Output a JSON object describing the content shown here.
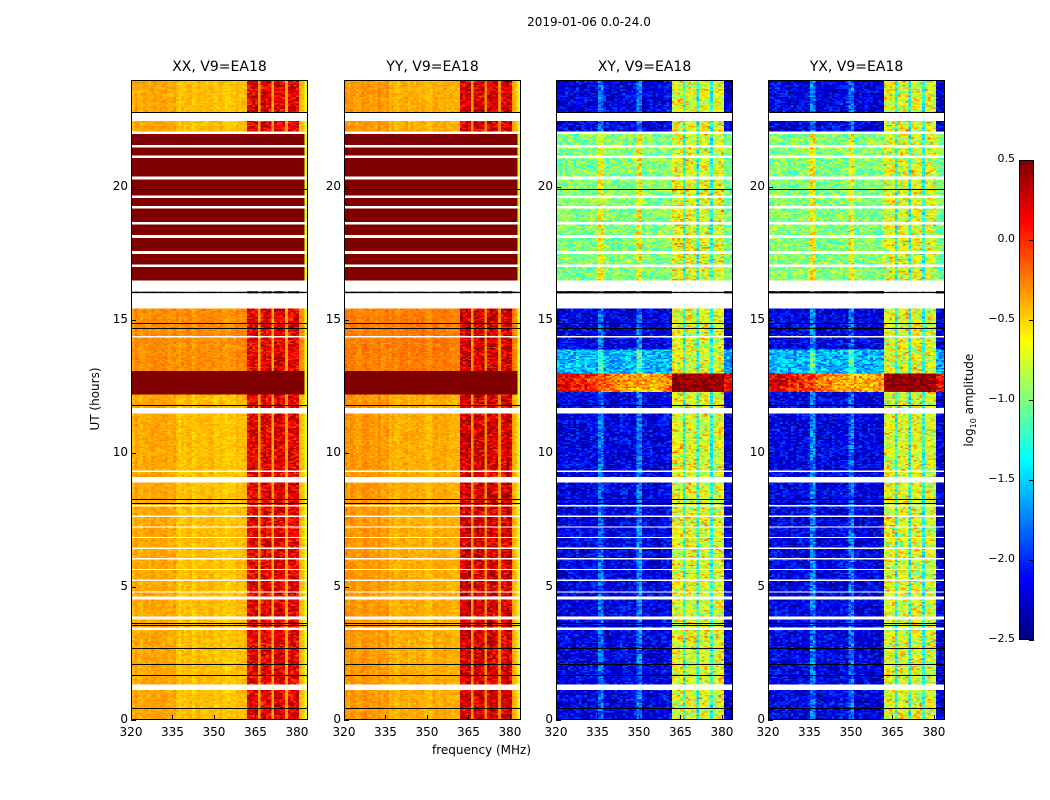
{
  "chart_data": {
    "type": "heatmap",
    "title": "2019-01-06 0.0-24.0",
    "xlabel": "frequency (MHz)",
    "ylabel": "UT (hours)",
    "xlim": [
      320,
      384
    ],
    "ylim": [
      0,
      24
    ],
    "xticks": [
      "320",
      "335",
      "350",
      "365",
      "380"
    ],
    "yticks": [
      "0",
      "5",
      "10",
      "15",
      "20"
    ],
    "colorbar": {
      "label_parts": [
        "log",
        "10",
        " amplitude"
      ],
      "range": [
        -2.5,
        0.5
      ],
      "ticks": [
        "0.5",
        "0.0",
        "−0.5",
        "−1.0",
        "−1.5",
        "−2.0",
        "−2.5"
      ],
      "colormap": "jet"
    },
    "rfi_band_mhz": [
      362,
      381
    ],
    "rfi_subband_gaps_mhz": [
      366.5,
      371.5,
      376.5
    ],
    "flagged_rows_hours": [
      [
        1.1,
        1.3
      ],
      [
        3.35,
        3.45
      ],
      [
        3.75,
        3.85
      ],
      [
        4.5,
        4.6
      ],
      [
        4.75,
        4.8
      ],
      [
        5.2,
        5.25
      ],
      [
        5.6,
        5.65
      ],
      [
        6.0,
        6.05
      ],
      [
        6.4,
        6.45
      ],
      [
        6.8,
        6.85
      ],
      [
        7.2,
        7.25
      ],
      [
        7.6,
        7.65
      ],
      [
        8.0,
        8.05
      ],
      [
        8.9,
        9.1
      ],
      [
        9.3,
        9.35
      ],
      [
        11.5,
        11.7
      ],
      [
        14.35,
        14.4
      ],
      [
        15.45,
        16.0
      ],
      [
        16.1,
        16.5
      ],
      [
        17.0,
        17.1
      ],
      [
        17.5,
        17.6
      ],
      [
        18.1,
        18.2
      ],
      [
        18.6,
        18.7
      ],
      [
        19.2,
        19.3
      ],
      [
        19.6,
        19.7
      ],
      [
        20.3,
        20.4
      ],
      [
        21.1,
        21.2
      ],
      [
        21.5,
        21.6
      ],
      [
        22.0,
        22.1
      ],
      [
        22.5,
        22.8
      ]
    ],
    "black_lines_hours": [
      0.45,
      1.7,
      2.1,
      2.7,
      3.55,
      3.65,
      8.15,
      8.3,
      11.8,
      14.7,
      14.9,
      16.05,
      19.9,
      22.8
    ],
    "panels": [
      {
        "title": "XX, V9=EA18",
        "base": -0.45,
        "rfi": 0.2,
        "noise": 0.08,
        "bands": [
          [
            12.2,
            13.1,
            0.6
          ],
          [
            16.5,
            22.1,
            0.6
          ],
          [
            13.1,
            15.5,
            -0.3
          ]
        ]
      },
      {
        "title": "YY, V9=EA18",
        "base": -0.4,
        "rfi": 0.25,
        "noise": 0.08,
        "bands": [
          [
            12.2,
            13.1,
            0.6
          ],
          [
            16.5,
            22.1,
            0.6
          ],
          [
            13.1,
            15.5,
            -0.25
          ]
        ]
      },
      {
        "title": "XY, V9=EA18",
        "base": -2.2,
        "rfi": -0.7,
        "noise": 0.3,
        "bands": [
          [
            12.3,
            13.0,
            -0.1
          ],
          [
            16.5,
            22.1,
            -1.0
          ],
          [
            13.0,
            13.9,
            -1.6
          ]
        ]
      },
      {
        "title": "YX, V9=EA18",
        "base": -2.2,
        "rfi": -0.7,
        "noise": 0.3,
        "bands": [
          [
            12.3,
            13.0,
            -0.1
          ],
          [
            16.5,
            22.1,
            -1.0
          ],
          [
            13.0,
            13.9,
            -1.6
          ]
        ]
      }
    ]
  }
}
